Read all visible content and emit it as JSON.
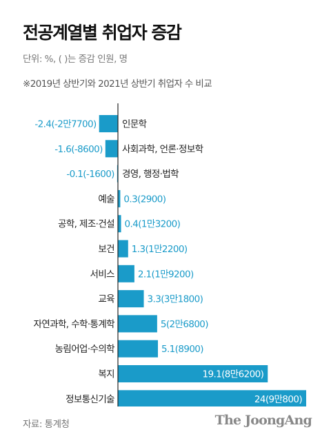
{
  "header": {
    "title": "전공계열별 취업자 증감",
    "unit_note": "단위: %, ( )는 증감 인원, 명",
    "comparison_note": "※2019년 상반기와 2021년 상반기 취업자 수 비교"
  },
  "footer": {
    "source": "자료: 통계청",
    "logo": "The JoongAng"
  },
  "colors": {
    "bar": "#1a9bc9",
    "value_text": "#1a9bc9",
    "inside_value_text": "#ffffff",
    "axis": "#222222"
  },
  "chart_data": {
    "type": "bar",
    "orientation": "horizontal",
    "title": "",
    "xlabel": "",
    "ylabel": "",
    "xlim": [
      -2.4,
      24
    ],
    "categories": [
      "인문학",
      "사회과학, 언론·정보학",
      "경영, 행정·법학",
      "예술",
      "공학, 제조·건설",
      "보건",
      "서비스",
      "교육",
      "자연과학, 수학·통계학",
      "농림어업·수의학",
      "복지",
      "정보통신기술"
    ],
    "values": [
      -2.4,
      -1.6,
      -0.1,
      0.3,
      0.4,
      1.3,
      2.1,
      3.3,
      5,
      5.1,
      19.1,
      24
    ],
    "value_labels": [
      "-2.4(-2만7700)",
      "-1.6(-8600)",
      "-0.1(-1600)",
      "0.3(2900)",
      "0.4(1만3200)",
      "1.3(1만2200)",
      "2.1(1만9200)",
      "3.3(3만1800)",
      "5(2만6800)",
      "5.1(8900)",
      "19.1(8만6200)",
      "24(9만800)"
    ],
    "grid": false,
    "legend": "none"
  }
}
